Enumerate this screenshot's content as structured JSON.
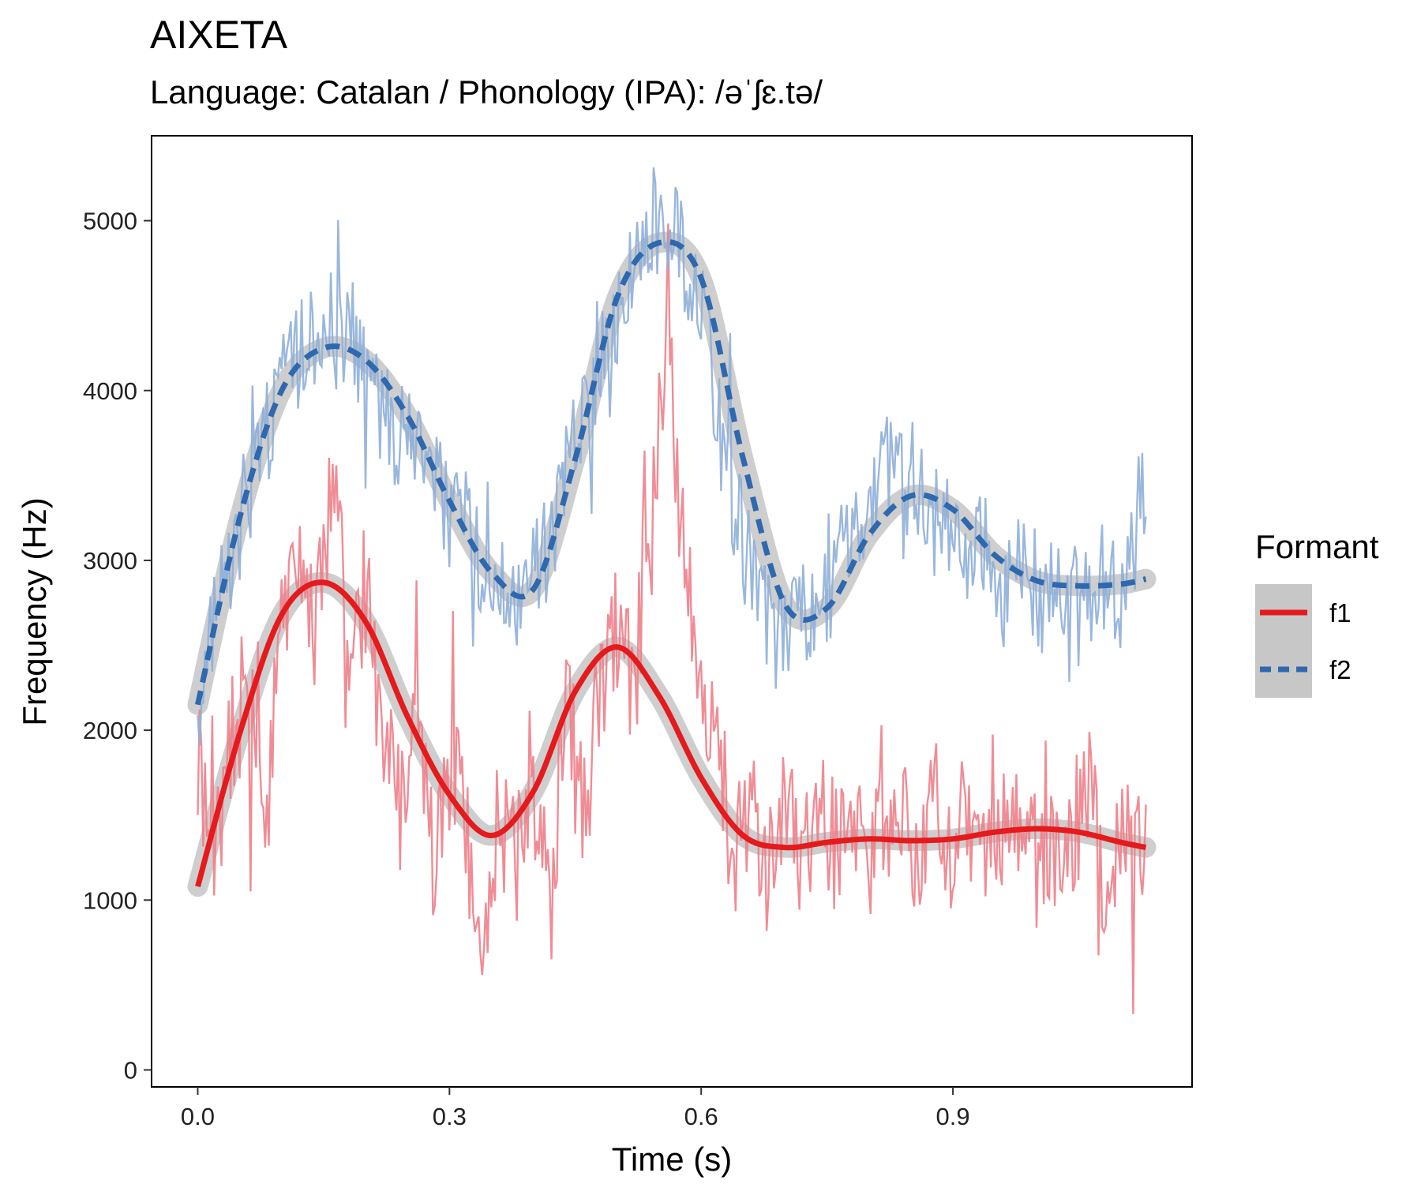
{
  "chart_data": {
    "type": "line",
    "title": "AIXETA",
    "subtitle": "Language: Catalan / Phonology (IPA): /əˈʃɛ.tə/",
    "xlabel": "Time (s)",
    "ylabel": "Frequency (Hz)",
    "xlim": [
      -0.055,
      1.185
    ],
    "ylim": [
      -100,
      5500
    ],
    "x_ticks": [
      0.0,
      0.3,
      0.6,
      0.9
    ],
    "x_tick_labels": [
      "0.0",
      "0.3",
      "0.6",
      "0.9"
    ],
    "y_ticks": [
      0,
      1000,
      2000,
      3000,
      4000,
      5000
    ],
    "y_tick_labels": [
      "0",
      "1000",
      "2000",
      "3000",
      "4000",
      "5000"
    ],
    "grid": false,
    "legend": {
      "title": "Formant",
      "position": "right"
    },
    "series": [
      {
        "name": "f1",
        "color": "#E41A1C",
        "raw_color": "#EE7F8A",
        "line_style": "solid",
        "raw_x": [
          0.0,
          0.02,
          0.04,
          0.06,
          0.08,
          0.1,
          0.12,
          0.14,
          0.16,
          0.18,
          0.2,
          0.22,
          0.24,
          0.26,
          0.28,
          0.3,
          0.32,
          0.34,
          0.36,
          0.38,
          0.4,
          0.42,
          0.44,
          0.46,
          0.48,
          0.5,
          0.52,
          0.54,
          0.56,
          0.58,
          0.6,
          0.62,
          0.64,
          0.66,
          0.68,
          0.7,
          0.72,
          0.74,
          0.76,
          0.78,
          0.8,
          0.82,
          0.84,
          0.86,
          0.88,
          0.9,
          0.92,
          0.94,
          0.96,
          0.98,
          1.0,
          1.02,
          1.04,
          1.06,
          1.08,
          1.1,
          1.13
        ],
        "raw_y": [
          1800,
          1300,
          1900,
          2300,
          1700,
          2600,
          3100,
          2600,
          3400,
          2500,
          2800,
          2100,
          1500,
          2300,
          1200,
          1800,
          1400,
          900,
          1500,
          1200,
          1600,
          1100,
          2100,
          1500,
          2300,
          2600,
          2200,
          3400,
          4200,
          3000,
          2100,
          1800,
          1300,
          1600,
          1100,
          1500,
          1200,
          1600,
          1300,
          1500,
          1100,
          1500,
          1400,
          1200,
          1600,
          1300,
          1500,
          1100,
          1600,
          1400,
          1200,
          1500,
          1300,
          1700,
          1100,
          1400,
          1300
        ],
        "smooth_x": [
          0.0,
          0.05,
          0.1,
          0.15,
          0.2,
          0.25,
          0.3,
          0.35,
          0.4,
          0.45,
          0.5,
          0.55,
          0.6,
          0.65,
          0.7,
          0.75,
          0.8,
          0.85,
          0.9,
          0.95,
          1.0,
          1.05,
          1.1,
          1.13
        ],
        "smooth_y": [
          1080,
          1980,
          2680,
          2870,
          2640,
          2080,
          1620,
          1380,
          1640,
          2230,
          2490,
          2200,
          1720,
          1380,
          1310,
          1340,
          1360,
          1350,
          1360,
          1400,
          1420,
          1400,
          1340,
          1310
        ]
      },
      {
        "name": "f2",
        "color": "#2E68AE",
        "raw_color": "#8FAFD8",
        "line_style": "dashed",
        "raw_x": [
          0.0,
          0.02,
          0.04,
          0.06,
          0.08,
          0.1,
          0.12,
          0.14,
          0.16,
          0.18,
          0.2,
          0.22,
          0.24,
          0.26,
          0.28,
          0.3,
          0.32,
          0.34,
          0.36,
          0.38,
          0.4,
          0.42,
          0.44,
          0.46,
          0.48,
          0.5,
          0.52,
          0.54,
          0.56,
          0.58,
          0.6,
          0.62,
          0.64,
          0.66,
          0.68,
          0.7,
          0.72,
          0.74,
          0.76,
          0.78,
          0.8,
          0.82,
          0.84,
          0.86,
          0.88,
          0.9,
          0.92,
          0.94,
          0.96,
          0.98,
          1.0,
          1.02,
          1.04,
          1.06,
          1.08,
          1.1,
          1.13
        ],
        "raw_y": [
          2200,
          2700,
          3000,
          3400,
          3700,
          4100,
          4200,
          4300,
          4100,
          4400,
          4100,
          3900,
          3700,
          3600,
          3500,
          3300,
          3200,
          3000,
          2900,
          2700,
          2900,
          3100,
          3500,
          3800,
          4200,
          4400,
          4700,
          5000,
          4900,
          4800,
          4500,
          3800,
          3300,
          2900,
          2600,
          2500,
          2700,
          2800,
          2900,
          3100,
          3300,
          3600,
          3500,
          3400,
          3200,
          3300,
          3000,
          3100,
          2800,
          3000,
          2700,
          2900,
          2600,
          2800,
          2900,
          2700,
          3500
        ],
        "smooth_x": [
          0.0,
          0.05,
          0.1,
          0.15,
          0.2,
          0.25,
          0.3,
          0.35,
          0.4,
          0.45,
          0.5,
          0.55,
          0.6,
          0.65,
          0.7,
          0.75,
          0.8,
          0.85,
          0.9,
          0.95,
          1.0,
          1.05,
          1.1,
          1.13
        ],
        "smooth_y": [
          2150,
          3250,
          4000,
          4250,
          4180,
          3850,
          3350,
          2930,
          2830,
          3600,
          4550,
          4870,
          4660,
          3600,
          2740,
          2720,
          3150,
          3380,
          3300,
          3030,
          2880,
          2850,
          2860,
          2890
        ]
      }
    ]
  }
}
